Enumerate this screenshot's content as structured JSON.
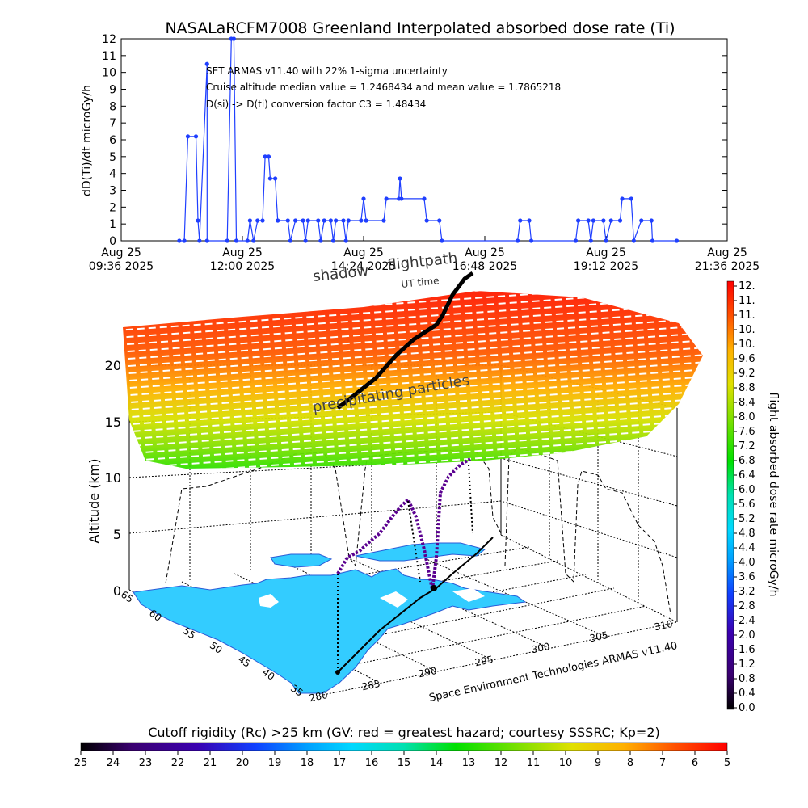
{
  "top_chart": {
    "title": "NASALaRCFM7008  Greenland Interpolated absorbed dose rate (Ti)",
    "ylabel": "dD(Ti)/dt microGy/h",
    "annotations": [
      "SET ARMAS v11.40 with 22% 1-sigma uncertainty",
      "Cruise altitude median value = 1.2468434 and mean value = 1.7865218",
      "D(si) -> D(ti) conversion factor C3 = 1.48434"
    ],
    "x_ticks": [
      {
        "line1": "Aug 25",
        "line2": "09:36 2025"
      },
      {
        "line1": "Aug 25",
        "line2": "12:00 2025"
      },
      {
        "line1": "Aug 25",
        "line2": "14:24 2025"
      },
      {
        "line1": "Aug 25",
        "line2": "16:48 2025"
      },
      {
        "line1": "Aug 25",
        "line2": "19:12 2025"
      },
      {
        "line1": "Aug 25",
        "line2": "21:36 2025"
      }
    ],
    "y_ticks": [
      "0",
      "1",
      "2",
      "3",
      "4",
      "5",
      "6",
      "7",
      "8",
      "9",
      "10",
      "11",
      "12"
    ]
  },
  "chart_data": [
    {
      "type": "line",
      "title": "NASALaRCFM7008  Greenland Interpolated absorbed dose rate (Ti)",
      "xlabel": "",
      "ylabel": "dD(Ti)/dt microGy/h",
      "x_unit": "hours since Aug 25 2025 00:00",
      "xlim": [
        9.6,
        21.6
      ],
      "ylim": [
        0,
        12
      ],
      "grid": false,
      "series": [
        {
          "values": [
            [
              10.75,
              0
            ],
            [
              10.85,
              0
            ],
            [
              10.92,
              6.2
            ],
            [
              11.08,
              6.2
            ],
            [
              11.12,
              1.2
            ],
            [
              11.15,
              0
            ],
            [
              11.3,
              10.5
            ],
            [
              11.3,
              0
            ],
            [
              11.7,
              0
            ],
            [
              11.78,
              12
            ],
            [
              11.83,
              12
            ],
            [
              11.88,
              0
            ],
            [
              12.1,
              0
            ],
            [
              12.15,
              1.2
            ],
            [
              12.22,
              0
            ],
            [
              12.3,
              1.2
            ],
            [
              12.4,
              1.2
            ],
            [
              12.45,
              5
            ],
            [
              12.52,
              5
            ],
            [
              12.55,
              3.7
            ],
            [
              12.65,
              3.7
            ],
            [
              12.7,
              1.2
            ],
            [
              12.9,
              1.2
            ],
            [
              12.95,
              0
            ],
            [
              13.05,
              1.2
            ],
            [
              13.2,
              1.2
            ],
            [
              13.25,
              0
            ],
            [
              13.3,
              1.2
            ],
            [
              13.5,
              1.2
            ],
            [
              13.55,
              0
            ],
            [
              13.62,
              1.2
            ],
            [
              13.75,
              1.2
            ],
            [
              13.8,
              0
            ],
            [
              13.85,
              1.2
            ],
            [
              14.0,
              1.2
            ],
            [
              14.05,
              0
            ],
            [
              14.1,
              1.2
            ],
            [
              14.35,
              1.2
            ],
            [
              14.4,
              2.5
            ],
            [
              14.45,
              1.2
            ],
            [
              14.8,
              1.2
            ],
            [
              14.85,
              2.5
            ],
            [
              15.1,
              2.5
            ],
            [
              15.12,
              3.7
            ],
            [
              15.15,
              2.5
            ],
            [
              15.6,
              2.5
            ],
            [
              15.65,
              1.2
            ],
            [
              15.9,
              1.2
            ],
            [
              15.95,
              0
            ],
            [
              17.45,
              0
            ],
            [
              17.5,
              1.2
            ],
            [
              17.68,
              1.2
            ],
            [
              17.72,
              0
            ],
            [
              18.6,
              0
            ],
            [
              18.65,
              1.2
            ],
            [
              18.85,
              1.2
            ],
            [
              18.9,
              0
            ],
            [
              18.95,
              1.2
            ],
            [
              19.15,
              1.2
            ],
            [
              19.2,
              0
            ],
            [
              19.3,
              1.2
            ],
            [
              19.48,
              1.2
            ],
            [
              19.52,
              2.5
            ],
            [
              19.7,
              2.5
            ],
            [
              19.75,
              0
            ],
            [
              19.9,
              1.2
            ],
            [
              20.1,
              1.2
            ],
            [
              20.12,
              0
            ],
            [
              20.6,
              0
            ]
          ]
        }
      ]
    },
    {
      "type": "scatter",
      "title": "",
      "xlabel": "",
      "ylabel": "Altitude (km)",
      "zlim": [
        0,
        20
      ],
      "z_ticks": [
        "0",
        "5",
        "10",
        "15",
        "20"
      ],
      "lat_ticks": [
        "65",
        "60",
        "55",
        "50",
        "45",
        "40",
        "35"
      ],
      "lon_ticks": [
        "280",
        "285",
        "290",
        "295",
        "300",
        "305",
        "310"
      ],
      "labels": [
        "shadow",
        "flightpath",
        "UT time",
        "precipitating particles"
      ],
      "credit": "Space Environment Technologies ARMAS v11.40"
    },
    {
      "type": "heatmap",
      "title": "flight absorbed dose rate microGy/h",
      "range": [
        0.0,
        12.0
      ],
      "ticks": [
        "0.0",
        "0.4",
        "0.8",
        "1.2",
        "1.6",
        "2.0",
        "2.4",
        "2.8",
        "3.2",
        "3.6",
        "4.0",
        "4.4",
        "4.8",
        "5.2",
        "5.6",
        "6.0",
        "6.4",
        "6.8",
        "7.2",
        "7.6",
        "8.0",
        "8.4",
        "8.8",
        "9.2",
        "9.6",
        "10.",
        "10.",
        "11.",
        "11.",
        "12."
      ]
    },
    {
      "type": "heatmap",
      "title": "Cutoff rigidity (Rc) >25 km (GV: red = greatest hazard; courtesy SSSRC; Kp=2)",
      "range": [
        25,
        5
      ],
      "ticks": [
        "25",
        "24",
        "23",
        "22",
        "21",
        "20",
        "19",
        "18",
        "17",
        "16",
        "15",
        "14",
        "13",
        "12",
        "11",
        "10",
        "9",
        "8",
        "7",
        "6",
        "5"
      ]
    }
  ],
  "overlay_labels": {
    "shadow": "shadow",
    "flightpath": "flightpath",
    "ut_time": "UT time",
    "precip": "precipitating particles",
    "credit": "Space Environment Technologies ARMAS v11.40",
    "altitude_label": "Altitude (km)"
  },
  "right_colorbar": {
    "label": "flight absorbed dose rate microGy/h",
    "ticks": [
      "0.0",
      "0.4",
      "0.8",
      "1.2",
      "1.6",
      "2.0",
      "2.4",
      "2.8",
      "3.2",
      "3.6",
      "4.0",
      "4.4",
      "4.8",
      "5.2",
      "5.6",
      "6.0",
      "6.4",
      "6.8",
      "7.2",
      "7.6",
      "8.0",
      "8.4",
      "8.8",
      "9.2",
      "9.6",
      "10.",
      "10.",
      "11.",
      "11.",
      "12."
    ]
  },
  "bottom_colorbar": {
    "label": "Cutoff rigidity (Rc) >25 km (GV: red = greatest hazard; courtesy SSSRC; Kp=2)",
    "ticks": [
      "25",
      "24",
      "23",
      "22",
      "21",
      "20",
      "19",
      "18",
      "17",
      "16",
      "15",
      "14",
      "13",
      "12",
      "11",
      "10",
      "9",
      "8",
      "7",
      "6",
      "5"
    ]
  },
  "colors": {
    "trace": "#1f3fff",
    "axis": "#000000",
    "map": "#33ccff",
    "map_dark": "#2a5bd7",
    "path": "#000000"
  }
}
